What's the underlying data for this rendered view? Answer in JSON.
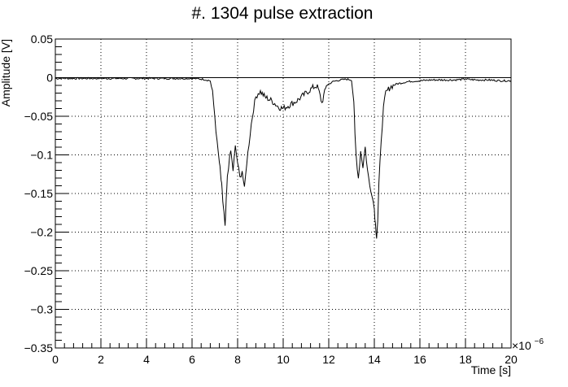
{
  "chart_data": {
    "type": "line",
    "title": "#. 1304 pulse extraction",
    "xlabel": "Time [s]",
    "ylabel": "Amplitude [V]",
    "x_exponent_label": "×10",
    "x_exponent_power": "−6",
    "xlim": [
      0,
      20
    ],
    "ylim": [
      -0.35,
      0.05
    ],
    "grid": true,
    "x_ticks": [
      0,
      2,
      4,
      6,
      8,
      10,
      12,
      14,
      16,
      18,
      20
    ],
    "x_tick_labels": [
      "0",
      "2",
      "4",
      "6",
      "8",
      "10",
      "12",
      "14",
      "16",
      "18",
      "20"
    ],
    "y_ticks": [
      0.05,
      0,
      -0.05,
      -0.1,
      -0.15,
      -0.2,
      -0.25,
      -0.3,
      -0.35
    ],
    "y_tick_labels": [
      "0.05",
      "0",
      "−0.05",
      "−0.1",
      "−0.15",
      "−0.2",
      "−0.25",
      "−0.3",
      "−0.35"
    ],
    "baseline": 0,
    "series": [
      {
        "x": [
          0.0,
          1.0,
          2.0,
          3.0,
          4.0,
          5.0,
          6.0,
          6.5,
          6.8,
          6.9,
          7.0,
          7.1,
          7.2,
          7.25,
          7.3,
          7.35,
          7.4,
          7.45,
          7.5,
          7.55,
          7.6,
          7.7,
          7.8,
          7.9,
          8.0,
          8.1,
          8.2,
          8.3,
          8.4,
          8.5,
          8.6,
          8.7,
          8.8,
          8.9,
          9.0,
          9.2,
          9.5,
          9.8,
          10.0,
          10.3,
          10.6,
          11.0,
          11.3,
          11.5,
          11.7,
          11.9,
          12.2,
          12.5,
          12.8,
          13.0,
          13.1,
          13.15,
          13.2,
          13.3,
          13.4,
          13.5,
          13.6,
          13.7,
          13.8,
          13.9,
          14.0,
          14.05,
          14.1,
          14.15,
          14.2,
          14.3,
          14.4,
          14.5,
          14.7,
          15.0,
          15.5,
          16.0,
          16.5,
          17.0,
          17.5,
          18.0,
          18.5,
          19.0,
          19.5,
          20.0
        ],
        "y": [
          -0.001,
          -0.001,
          -0.001,
          -0.001,
          -0.001,
          -0.001,
          -0.001,
          -0.002,
          -0.004,
          -0.02,
          -0.05,
          -0.085,
          -0.11,
          -0.125,
          -0.14,
          -0.16,
          -0.175,
          -0.195,
          -0.16,
          -0.13,
          -0.115,
          -0.095,
          -0.12,
          -0.09,
          -0.11,
          -0.13,
          -0.12,
          -0.145,
          -0.11,
          -0.085,
          -0.06,
          -0.04,
          -0.025,
          -0.02,
          -0.018,
          -0.025,
          -0.03,
          -0.038,
          -0.04,
          -0.035,
          -0.03,
          -0.02,
          -0.013,
          -0.01,
          -0.033,
          -0.01,
          -0.005,
          -0.003,
          -0.002,
          -0.003,
          -0.03,
          -0.075,
          -0.1,
          -0.13,
          -0.095,
          -0.115,
          -0.09,
          -0.12,
          -0.14,
          -0.15,
          -0.17,
          -0.19,
          -0.205,
          -0.185,
          -0.14,
          -0.08,
          -0.04,
          -0.02,
          -0.012,
          -0.008,
          -0.005,
          -0.004,
          -0.003,
          -0.003,
          -0.003,
          -0.002,
          -0.003,
          -0.003,
          -0.004,
          -0.004
        ]
      }
    ]
  }
}
